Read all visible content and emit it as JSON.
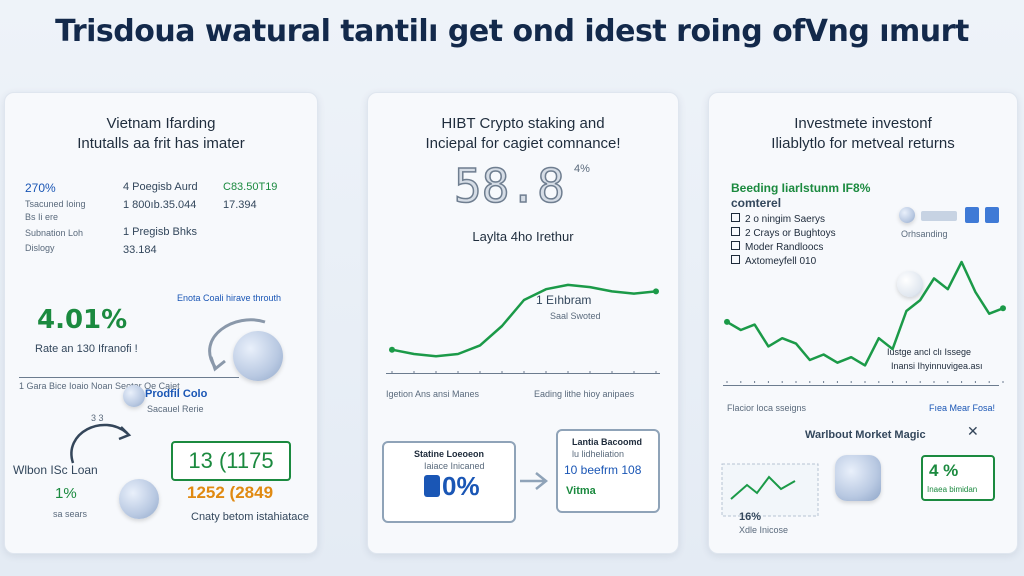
{
  "header": {
    "title": "Trisdoua watural tantilı get ond idest roing ofVng ımurt"
  },
  "panel1": {
    "title_line1": "Vietnam Ifarding",
    "title_line2": "Intutalls aa frit has imater",
    "stats": {
      "c1": [
        "270%",
        "Tsacuned Ioing",
        "Bs Ii ere",
        "Subnation Loh",
        "Dislogy"
      ],
      "c2": [
        "4 Poegisb Aurd",
        "1 800ıb.35.044",
        "1 Pregisb Bhks",
        "33.184"
      ],
      "c3": [
        "C83.50T19",
        "17.394"
      ]
    },
    "mid_caption": "Enota Coali hirave throuth",
    "big_percent": "4.01%",
    "rate_label": "Rate an 130 Ifranofi !",
    "axis_labels": "1 Gara Bice Ioaio Noan Seoter Oe Caiet",
    "profit_title": "Prodfil Colo",
    "profit_sub": "Sacauel Rerie",
    "small_tag": "3 3",
    "loan_label": "Wlbon ISc Loan",
    "loan_percent": "1%",
    "loan_sub": "sa sears",
    "box_value": "13 (1175",
    "orange_value": "1252 (2849",
    "bottom_caption": "Cnaty betom istahiatace"
  },
  "panel2": {
    "title_line1": "HIBT Crypto staking and",
    "title_line2": "Inciepal for cagiet comnance!",
    "big_number": "58.8",
    "big_pct": "4%",
    "chart_title": "Laylta 4ho Irethur",
    "annot_value": "1 Eıhbram",
    "annot_sub": "Saal Swoted",
    "axis_left": "Igetion Ans ansi Manes",
    "axis_right": "Eading lithe hioy anipaes",
    "box_left_title": "Statine Loeoeon",
    "box_left_sub": "Iaiace Inicaned",
    "box_left_value": "0%",
    "box_right_title": "Lantia Bacoomd",
    "box_right_sub": "lu lidheliation",
    "box_right_value": "10 beefrm 108",
    "box_right_tag": "Vitma"
  },
  "panel3": {
    "title_line1": "Investmete investonf",
    "title_line2": "Iliablytlo for metveal returns",
    "heading_line1": "Beeding Iiarlstunm IF8%",
    "heading_line2": "comterel",
    "checklist": [
      "2 o ningim Saerys",
      "2 Crays or Bughtoys",
      "Moder Randloocs",
      "Axtomeyfell 010"
    ],
    "aside_label": "Orhsanding",
    "annot_line1": "Iustge ancl clı Issege",
    "annot_line2": "Inansi Ihyinnuvigea.ası",
    "axis_left": "Flacior loca sseigns",
    "axis_right": "Fıea Mear Fosa!",
    "market_title": "Warlbout Morket Magic",
    "pct_box": "4 %",
    "pct_box_sub": "Inaea bimidan",
    "bottom_pct": "16%",
    "bottom_sub": "Xdle Inicose"
  },
  "chart_data": [
    {
      "type": "line",
      "title": "Laylta 4ho Irethur",
      "x": [
        0,
        1,
        2,
        3,
        4,
        5,
        6,
        7,
        8,
        9,
        10,
        11,
        12
      ],
      "series": [
        {
          "values": [
            16,
            12,
            10,
            12,
            20,
            38,
            62,
            72,
            76,
            74,
            70,
            68,
            70
          ]
        }
      ],
      "ylim": [
        0,
        100
      ],
      "color": "#1b9a48"
    },
    {
      "type": "line",
      "title": "",
      "x": [
        0,
        1,
        2,
        3,
        4,
        5,
        6,
        7,
        8,
        9,
        10,
        11,
        12,
        13,
        14,
        15,
        16,
        17,
        18,
        19,
        20
      ],
      "series": [
        {
          "values": [
            42,
            36,
            40,
            24,
            30,
            26,
            14,
            18,
            12,
            16,
            10,
            30,
            22,
            50,
            58,
            74,
            66,
            86,
            64,
            48,
            52
          ]
        }
      ],
      "ylim": [
        0,
        100
      ],
      "color": "#1b9a48"
    }
  ],
  "colors": {
    "accent_green": "#1b9a48",
    "accent_blue": "#1a56b5",
    "accent_orange": "#e08a12"
  }
}
